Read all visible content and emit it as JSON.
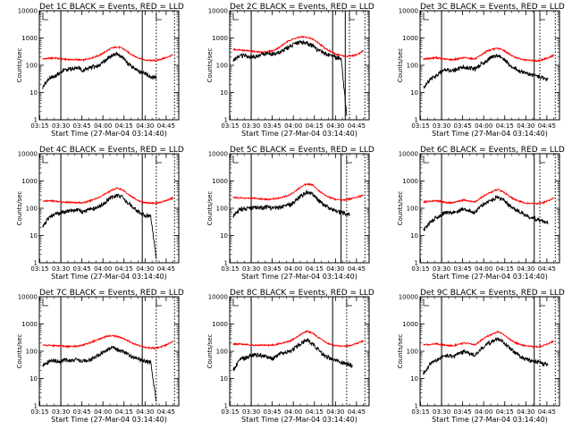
{
  "chart_data": {
    "type": "line",
    "y_scale": "log",
    "ylim": [
      1,
      10000
    ],
    "y_tick_labels": [
      "1",
      "10",
      "100",
      "1000",
      "10000"
    ],
    "x_tick_labels": [
      "03:15",
      "03:30",
      "03:45",
      "04:00",
      "04:15",
      "04:30",
      "04:45"
    ],
    "xlim": [
      "03:14:40",
      "04:54:00"
    ],
    "xlabel": "Start Time (27-Mar-04 03:14:40)",
    "ylabel": "Counts/sec",
    "series_colors": {
      "events": "#000000",
      "lld": "#ff0000"
    },
    "x": [
      "03:17",
      "03:22",
      "03:26",
      "03:30",
      "03:34",
      "03:38",
      "03:42",
      "03:46",
      "03:50",
      "03:54",
      "03:58",
      "04:02",
      "04:06",
      "04:10",
      "04:14",
      "04:18",
      "04:22",
      "04:26",
      "04:30",
      "04:34",
      "04:38",
      "04:42",
      "04:46",
      "04:50"
    ],
    "panels": [
      {
        "title": "Det 1C BLACK = Events, RED = LLD",
        "events_start": "03:17",
        "events_end": "04:38",
        "events": [
          15,
          35,
          40,
          60,
          70,
          75,
          80,
          65,
          80,
          90,
          100,
          160,
          220,
          250,
          200,
          110,
          80,
          60,
          50,
          40,
          35,
          null,
          null,
          null
        ],
        "lld": [
          170,
          180,
          185,
          170,
          165,
          160,
          160,
          155,
          175,
          200,
          240,
          320,
          420,
          470,
          420,
          300,
          220,
          180,
          155,
          150,
          150,
          170,
          200,
          240
        ],
        "markers": {
          "solid": [
            "03:30",
            "04:28"
          ],
          "dotted": [
            "04:38",
            "04:51"
          ]
        }
      },
      {
        "title": "Det 2C BLACK = Events, RED = LLD",
        "events_start": "03:17",
        "events_end": "04:38",
        "events": [
          150,
          220,
          230,
          200,
          210,
          250,
          270,
          260,
          280,
          380,
          520,
          650,
          700,
          650,
          500,
          350,
          280,
          230,
          200,
          190,
          1.5,
          null,
          null,
          null
        ],
        "lld": [
          380,
          370,
          350,
          330,
          310,
          300,
          320,
          350,
          450,
          650,
          850,
          1000,
          1100,
          1050,
          900,
          650,
          450,
          330,
          260,
          230,
          210,
          220,
          250,
          350
        ],
        "markers": {
          "solid": [
            "03:30",
            "04:28",
            "04:37"
          ],
          "dotted": [
            "04:40",
            "04:51"
          ]
        }
      },
      {
        "title": "Det 3C BLACK = Events, RED = LLD",
        "events_start": "03:17",
        "events_end": "04:46",
        "events": [
          15,
          30,
          40,
          60,
          70,
          65,
          75,
          90,
          80,
          70,
          110,
          150,
          200,
          230,
          180,
          110,
          80,
          60,
          50,
          45,
          40,
          35,
          30,
          null
        ],
        "lld": [
          170,
          180,
          190,
          175,
          165,
          160,
          175,
          190,
          180,
          170,
          230,
          330,
          380,
          420,
          360,
          260,
          200,
          170,
          155,
          150,
          145,
          160,
          190,
          230
        ],
        "markers": {
          "solid": [
            "03:30",
            "04:36"
          ],
          "dotted": [
            "04:40",
            "04:51"
          ]
        }
      },
      {
        "title": "Det 4C BLACK = Events, RED = LLD",
        "events_start": "03:17",
        "events_end": "04:38",
        "events": [
          20,
          50,
          60,
          70,
          75,
          80,
          90,
          70,
          95,
          100,
          120,
          180,
          250,
          300,
          250,
          160,
          100,
          70,
          55,
          50,
          1.5,
          null,
          null,
          null
        ],
        "lld": [
          180,
          190,
          180,
          170,
          165,
          165,
          160,
          160,
          180,
          220,
          260,
          350,
          450,
          550,
          480,
          330,
          240,
          180,
          160,
          155,
          155,
          170,
          200,
          240
        ],
        "markers": {
          "solid": [
            "03:30",
            "04:28"
          ],
          "dotted": [
            "04:38",
            "04:51"
          ]
        }
      },
      {
        "title": "Det 5C BLACK = Events, RED = LLD",
        "events_start": "03:17",
        "events_end": "04:40",
        "events": [
          50,
          90,
          100,
          100,
          110,
          105,
          110,
          100,
          110,
          120,
          140,
          200,
          300,
          400,
          320,
          200,
          130,
          100,
          80,
          70,
          60,
          null,
          null,
          null
        ],
        "lld": [
          250,
          240,
          230,
          240,
          230,
          220,
          210,
          220,
          240,
          270,
          320,
          450,
          650,
          800,
          700,
          450,
          320,
          250,
          210,
          200,
          210,
          230,
          260,
          300
        ],
        "markers": {
          "solid": [
            "03:30",
            "04:34"
          ],
          "dotted": [
            "04:38",
            "04:51"
          ]
        }
      },
      {
        "title": "Det 6C BLACK = Events, RED = LLD",
        "events_start": "03:17",
        "events_end": "04:46",
        "events": [
          15,
          30,
          45,
          60,
          70,
          70,
          80,
          100,
          80,
          70,
          120,
          160,
          200,
          260,
          200,
          130,
          90,
          70,
          55,
          45,
          40,
          35,
          30,
          null
        ],
        "lld": [
          170,
          180,
          190,
          175,
          160,
          160,
          180,
          200,
          180,
          170,
          240,
          330,
          400,
          500,
          400,
          280,
          210,
          175,
          155,
          150,
          145,
          160,
          190,
          240
        ],
        "markers": {
          "solid": [
            "03:30",
            "04:36"
          ],
          "dotted": [
            "04:40",
            "04:51"
          ]
        }
      },
      {
        "title": "Det 7C BLACK = Events, RED = LLD",
        "events_start": "03:17",
        "events_end": "04:38",
        "events": [
          30,
          45,
          45,
          45,
          48,
          45,
          50,
          45,
          45,
          60,
          80,
          100,
          140,
          120,
          100,
          75,
          60,
          50,
          45,
          40,
          1.5,
          null,
          null,
          null
        ],
        "lld": [
          170,
          165,
          160,
          155,
          150,
          150,
          155,
          170,
          200,
          240,
          290,
          340,
          380,
          350,
          300,
          240,
          190,
          160,
          140,
          130,
          130,
          150,
          180,
          230
        ],
        "markers": {
          "solid": [
            "03:30",
            "04:28"
          ],
          "dotted": [
            "04:38",
            "04:51"
          ]
        }
      },
      {
        "title": "Det 8C BLACK = Events, RED = LLD",
        "events_start": "03:17",
        "events_end": "04:42",
        "events": [
          20,
          50,
          60,
          70,
          75,
          70,
          60,
          55,
          80,
          90,
          100,
          140,
          200,
          250,
          180,
          110,
          70,
          55,
          45,
          40,
          35,
          30,
          null,
          null
        ],
        "lld": [
          180,
          185,
          180,
          170,
          165,
          170,
          165,
          170,
          190,
          210,
          240,
          320,
          450,
          550,
          450,
          320,
          230,
          180,
          160,
          155,
          155,
          170,
          200,
          240
        ],
        "markers": {
          "solid": [
            "03:30",
            "04:28"
          ],
          "dotted": [
            "04:38",
            "04:51"
          ]
        }
      },
      {
        "title": "Det 9C BLACK = Events, RED = LLD",
        "events_start": "03:17",
        "events_end": "04:46",
        "events": [
          15,
          35,
          45,
          60,
          70,
          65,
          80,
          100,
          80,
          70,
          120,
          180,
          230,
          300,
          230,
          140,
          90,
          65,
          50,
          45,
          40,
          35,
          30,
          null
        ],
        "lld": [
          170,
          180,
          190,
          175,
          160,
          160,
          180,
          200,
          185,
          175,
          250,
          350,
          420,
          520,
          420,
          290,
          210,
          175,
          155,
          150,
          145,
          160,
          190,
          240
        ],
        "markers": {
          "solid": [
            "03:30",
            "04:36"
          ],
          "dotted": [
            "04:40",
            "04:51"
          ]
        }
      }
    ]
  }
}
